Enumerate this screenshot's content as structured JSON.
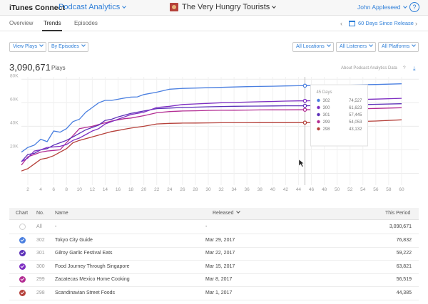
{
  "header": {
    "brand": "iTunes Connect",
    "module": "Podcast Analytics",
    "podcast_title": "The Very Hungry Tourists",
    "user": "John Appleseed",
    "help_glyph": "?"
  },
  "tabs": [
    {
      "label": "Overview"
    },
    {
      "label": "Trends"
    },
    {
      "label": "Episodes"
    }
  ],
  "active_tab": "Trends",
  "date_range": {
    "label": "60 Days Since Release",
    "prev_glyph": "‹",
    "next_glyph": "›"
  },
  "filters": {
    "left": [
      "View Plays",
      "By Episodes"
    ],
    "right": [
      "All Locations",
      "All Listeners",
      "All Platforms"
    ]
  },
  "summary": {
    "total": "3,090,671",
    "unit": "Plays",
    "about_link": "About Podcast Analytics Data",
    "question_glyph": "?",
    "download_glyph": "⤓"
  },
  "tooltip": {
    "title": "45 Days",
    "entries": [
      {
        "episode": "302",
        "value": "74,527"
      },
      {
        "episode": "300",
        "value": "61,623"
      },
      {
        "episode": "301",
        "value": "57,445"
      },
      {
        "episode": "299",
        "value": "54,053"
      },
      {
        "episode": "298",
        "value": "43,132"
      }
    ]
  },
  "chart_data": {
    "type": "line",
    "xlabel": "",
    "ylabel": "",
    "x_ticks": [
      2,
      4,
      6,
      8,
      10,
      12,
      14,
      16,
      18,
      20,
      22,
      24,
      26,
      28,
      30,
      32,
      34,
      36,
      38,
      40,
      42,
      44,
      46,
      48,
      50,
      52,
      54,
      56,
      58,
      60
    ],
    "y_ticks": [
      0,
      20000,
      40000,
      60000,
      80000
    ],
    "y_tick_labels": [
      "",
      "20K",
      "40K",
      "60K",
      "80K"
    ],
    "xlim": [
      1,
      61
    ],
    "ylim": [
      -10000,
      82000
    ],
    "grid": true,
    "hover_x": 45,
    "series": [
      {
        "name": "302",
        "color": "#4a7fe0",
        "points": [
          [
            1,
            18000
          ],
          [
            2,
            22000
          ],
          [
            3,
            24000
          ],
          [
            4,
            29000
          ],
          [
            5,
            27000
          ],
          [
            6,
            36000
          ],
          [
            7,
            35000
          ],
          [
            8,
            38000
          ],
          [
            9,
            44000
          ],
          [
            10,
            46000
          ],
          [
            11,
            52000
          ],
          [
            12,
            56000
          ],
          [
            13,
            60000
          ],
          [
            14,
            62000
          ],
          [
            15,
            62000
          ],
          [
            16,
            63000
          ],
          [
            17,
            64000
          ],
          [
            18,
            64800
          ],
          [
            19,
            65000
          ],
          [
            20,
            67000
          ],
          [
            22,
            69000
          ],
          [
            24,
            71500
          ],
          [
            26,
            72200
          ],
          [
            28,
            72500
          ],
          [
            30,
            72800
          ],
          [
            32,
            73100
          ],
          [
            34,
            73400
          ],
          [
            36,
            73700
          ],
          [
            38,
            73900
          ],
          [
            40,
            74100
          ],
          [
            42,
            74300
          ],
          [
            44,
            74500
          ],
          [
            45,
            74527
          ],
          [
            48,
            74800
          ],
          [
            52,
            75200
          ],
          [
            56,
            75500
          ],
          [
            60,
            76100
          ]
        ]
      },
      {
        "name": "300",
        "color": "#7e2ec2",
        "points": [
          [
            1,
            10000
          ],
          [
            2,
            13000
          ],
          [
            3,
            19000
          ],
          [
            4,
            20000
          ],
          [
            5,
            22000
          ],
          [
            6,
            22500
          ],
          [
            7,
            23000
          ],
          [
            8,
            24500
          ],
          [
            9,
            28000
          ],
          [
            10,
            30000
          ],
          [
            11,
            33000
          ],
          [
            12,
            36000
          ],
          [
            13,
            38000
          ],
          [
            14,
            42000
          ],
          [
            15,
            44000
          ],
          [
            16,
            46000
          ],
          [
            17,
            48000
          ],
          [
            18,
            50000
          ],
          [
            20,
            52000
          ],
          [
            22,
            56000
          ],
          [
            24,
            57000
          ],
          [
            26,
            58500
          ],
          [
            28,
            59000
          ],
          [
            30,
            59500
          ],
          [
            32,
            60000
          ],
          [
            34,
            60300
          ],
          [
            36,
            60600
          ],
          [
            38,
            60900
          ],
          [
            40,
            61100
          ],
          [
            42,
            61400
          ],
          [
            44,
            61600
          ],
          [
            45,
            61623
          ],
          [
            48,
            62000
          ],
          [
            52,
            62600
          ],
          [
            56,
            63100
          ],
          [
            60,
            63800
          ]
        ]
      },
      {
        "name": "301",
        "color": "#5b2fb8",
        "points": [
          [
            1,
            10000
          ],
          [
            2,
            16000
          ],
          [
            3,
            17000
          ],
          [
            4,
            20000
          ],
          [
            5,
            21000
          ],
          [
            6,
            24000
          ],
          [
            7,
            26000
          ],
          [
            8,
            28000
          ],
          [
            9,
            31000
          ],
          [
            10,
            34000
          ],
          [
            11,
            37000
          ],
          [
            12,
            39000
          ],
          [
            13,
            41000
          ],
          [
            14,
            45000
          ],
          [
            15,
            46000
          ],
          [
            16,
            48000
          ],
          [
            17,
            49500
          ],
          [
            18,
            51000
          ],
          [
            20,
            53000
          ],
          [
            22,
            55000
          ],
          [
            24,
            55500
          ],
          [
            26,
            56000
          ],
          [
            28,
            56300
          ],
          [
            30,
            56600
          ],
          [
            32,
            56800
          ],
          [
            34,
            57000
          ],
          [
            36,
            57100
          ],
          [
            38,
            57200
          ],
          [
            40,
            57300
          ],
          [
            42,
            57400
          ],
          [
            44,
            57440
          ],
          [
            45,
            57445
          ],
          [
            48,
            57800
          ],
          [
            52,
            58200
          ],
          [
            56,
            58700
          ],
          [
            60,
            59200
          ]
        ]
      },
      {
        "name": "299",
        "color": "#b32d93",
        "points": [
          [
            1,
            7000
          ],
          [
            2,
            14000
          ],
          [
            3,
            16000
          ],
          [
            4,
            18000
          ],
          [
            5,
            19000
          ],
          [
            6,
            19500
          ],
          [
            7,
            20000
          ],
          [
            8,
            26000
          ],
          [
            9,
            32000
          ],
          [
            10,
            38000
          ],
          [
            11,
            39000
          ],
          [
            12,
            40000
          ],
          [
            13,
            41500
          ],
          [
            14,
            43000
          ],
          [
            15,
            44500
          ],
          [
            16,
            45500
          ],
          [
            17,
            46500
          ],
          [
            18,
            47000
          ],
          [
            20,
            49000
          ],
          [
            22,
            51500
          ],
          [
            24,
            52500
          ],
          [
            26,
            53000
          ],
          [
            28,
            53200
          ],
          [
            30,
            53500
          ],
          [
            32,
            53600
          ],
          [
            34,
            53700
          ],
          [
            36,
            53800
          ],
          [
            38,
            53900
          ],
          [
            40,
            53950
          ],
          [
            42,
            54000
          ],
          [
            44,
            54040
          ],
          [
            45,
            54053
          ],
          [
            48,
            54300
          ],
          [
            52,
            54700
          ],
          [
            56,
            55200
          ],
          [
            60,
            55800
          ]
        ]
      },
      {
        "name": "298",
        "color": "#b5403a",
        "points": [
          [
            1,
            2000
          ],
          [
            2,
            4000
          ],
          [
            3,
            8000
          ],
          [
            4,
            12000
          ],
          [
            5,
            13000
          ],
          [
            6,
            15000
          ],
          [
            7,
            18000
          ],
          [
            8,
            21000
          ],
          [
            9,
            26000
          ],
          [
            10,
            28000
          ],
          [
            11,
            29500
          ],
          [
            12,
            31000
          ],
          [
            13,
            32500
          ],
          [
            14,
            34000
          ],
          [
            15,
            35500
          ],
          [
            16,
            36500
          ],
          [
            17,
            37500
          ],
          [
            18,
            38500
          ],
          [
            20,
            40000
          ],
          [
            22,
            42000
          ],
          [
            24,
            42500
          ],
          [
            26,
            42700
          ],
          [
            28,
            42800
          ],
          [
            30,
            42900
          ],
          [
            32,
            43000
          ],
          [
            34,
            43000
          ],
          [
            36,
            43050
          ],
          [
            38,
            43080
          ],
          [
            40,
            43100
          ],
          [
            42,
            43110
          ],
          [
            44,
            43120
          ],
          [
            45,
            43132
          ],
          [
            48,
            43400
          ],
          [
            52,
            43900
          ],
          [
            56,
            44500
          ],
          [
            60,
            45500
          ]
        ]
      }
    ]
  },
  "table": {
    "columns": [
      "Chart",
      "No.",
      "Name",
      "Released",
      "This Period"
    ],
    "rows": [
      {
        "checked": false,
        "color": "",
        "no": "All",
        "name": "-",
        "released": "-",
        "period": "3,090,671"
      },
      {
        "checked": true,
        "color": "#4a7fe0",
        "no": "302",
        "name": "Tokyo City Guide",
        "released": "Mar 29, 2017",
        "period": "76,832"
      },
      {
        "checked": true,
        "color": "#5b2fb8",
        "no": "301",
        "name": "Gilroy Garlic Festival Eats",
        "released": "Mar 22, 2017",
        "period": "59,222"
      },
      {
        "checked": true,
        "color": "#7e2ec2",
        "no": "300",
        "name": "Food Journey Through Singapore",
        "released": "Mar 15, 2017",
        "period": "63,821"
      },
      {
        "checked": true,
        "color": "#b32d93",
        "no": "299",
        "name": "Zacatecas Mexico Home Cooking",
        "released": "Mar 8, 2017",
        "period": "56,519"
      },
      {
        "checked": true,
        "color": "#b5403a",
        "no": "298",
        "name": "Scandinavian Street Foods",
        "released": "Mar 1, 2017",
        "period": "44,385"
      }
    ]
  }
}
